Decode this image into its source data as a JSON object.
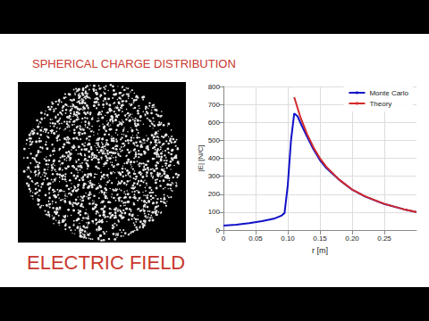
{
  "slide": {
    "title": "SPHERICAL CHARGE DISTRIBUTION",
    "caption": "ELECTRIC FIELD"
  },
  "chart_data": {
    "type": "line",
    "x_label": "r [m]",
    "y_label": "|E| [N/C]",
    "series": [
      {
        "name": "Monte Carlo",
        "color": "#1010c8",
        "line_style": "solid",
        "marker": "none",
        "x": [
          0,
          0.02,
          0.04,
          0.06,
          0.08,
          0.09,
          0.095,
          0.1,
          0.105,
          0.11,
          0.115,
          0.12,
          0.13,
          0.14,
          0.15,
          0.16,
          0.18,
          0.2,
          0.22,
          0.25,
          0.28,
          0.3
        ],
        "values": [
          25,
          30,
          38,
          50,
          65,
          80,
          95,
          250,
          500,
          650,
          635,
          595,
          520,
          450,
          390,
          345,
          280,
          225,
          187,
          145,
          116,
          100
        ]
      },
      {
        "name": "Theory",
        "color": "#d42a2a",
        "line_style": "solid",
        "marker": "none",
        "x": [
          0.11,
          0.12,
          0.13,
          0.14,
          0.15,
          0.16,
          0.18,
          0.2,
          0.22,
          0.25,
          0.28,
          0.3
        ],
        "values": [
          740,
          625,
          535,
          460,
          400,
          352,
          280,
          226,
          188,
          146,
          116,
          101
        ]
      }
    ],
    "xlim": [
      0,
      0.3
    ],
    "xticks": [
      0,
      0.05,
      {
        "value": 0.1,
        "label": "0.10"
      },
      0.15,
      {
        "value": 0.2,
        "label": "0.20"
      },
      0.25
    ],
    "ylim": [
      0,
      800
    ],
    "yticks": [
      0,
      100,
      200,
      300,
      400,
      500,
      600,
      700,
      800
    ],
    "grid": true,
    "legend": "upper right"
  }
}
